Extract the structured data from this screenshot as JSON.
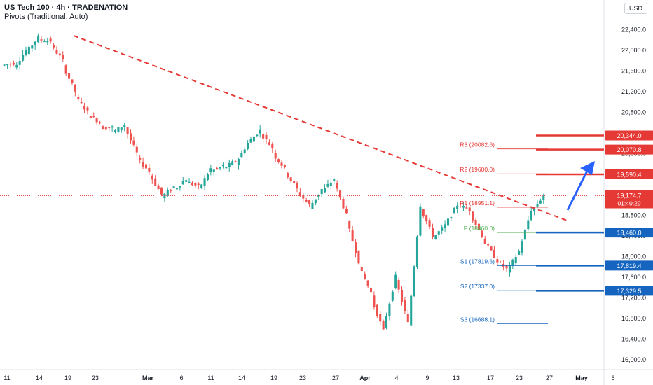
{
  "header": {
    "title": "US Tech 100 · 4h · TRADENATION",
    "subtitle": "Pivots (Traditional, Auto)",
    "currency": "USD"
  },
  "colors": {
    "up": "#26a69a",
    "down": "#ef5350",
    "trendline": "#e53935",
    "resistance": "#e53935",
    "support": "#1565c0",
    "pivot": "#4caf50",
    "arrow": "#2962ff",
    "price_label": "#e53935"
  },
  "chart_data": {
    "type": "candlestick",
    "ylim": [
      15800,
      22700
    ],
    "y_ticks": [
      16000,
      16400,
      16800,
      17200,
      17600,
      18000,
      18400,
      18800,
      19200,
      19600,
      20000,
      20400,
      20800,
      21200,
      21600,
      22000,
      22400
    ],
    "y_tick_labels": [
      "16,000.0",
      "16,400.0",
      "16,800.0",
      "17,200.0",
      "17,600.0",
      "18,000.0",
      "18,400.0",
      "18,800.0",
      "19,200.0",
      "19,600.0",
      "20,000.0",
      "20,400.0",
      "20,800.0",
      "21,200.0",
      "21,600.0",
      "22,000.0",
      "22,400.0"
    ],
    "x_ticks": [
      "11",
      "14",
      "19",
      "23",
      "Mar",
      "6",
      "11",
      "14",
      "19",
      "23",
      "27",
      "Apr",
      "4",
      "9",
      "13",
      "17",
      "23",
      "27",
      "May",
      "6"
    ],
    "x_bold_ticks": [
      "Mar",
      "Apr",
      "May"
    ],
    "price_path": [
      [
        21700,
        21750
      ],
      [
        21650,
        22000
      ],
      [
        21950,
        22250
      ],
      [
        22200,
        22180
      ],
      [
        22100,
        21800
      ],
      [
        21700,
        21200
      ],
      [
        21100,
        20800
      ],
      [
        20750,
        20600
      ],
      [
        20500,
        20500
      ],
      [
        20400,
        20550
      ],
      [
        20500,
        20000
      ],
      [
        19900,
        19650
      ],
      [
        19600,
        19200
      ],
      [
        19150,
        19350
      ],
      [
        19300,
        19500
      ],
      [
        19450,
        19350
      ],
      [
        19300,
        19700
      ],
      [
        19650,
        19750
      ],
      [
        19700,
        19850
      ],
      [
        19800,
        20200
      ],
      [
        20200,
        20450
      ],
      [
        20400,
        20100
      ],
      [
        20000,
        19700
      ],
      [
        19650,
        19300
      ],
      [
        19250,
        19000
      ],
      [
        18950,
        19300
      ],
      [
        19250,
        19500
      ],
      [
        19450,
        18800
      ],
      [
        18700,
        17900
      ],
      [
        17800,
        17300
      ],
      [
        17200,
        16550
      ],
      [
        16600,
        17600
      ],
      [
        17550,
        16700
      ],
      [
        16650,
        19000
      ],
      [
        18950,
        18400
      ],
      [
        18350,
        18600
      ],
      [
        18600,
        19000
      ],
      [
        19000,
        18900
      ],
      [
        18850,
        18400
      ],
      [
        18350,
        18000
      ],
      [
        17950,
        17750
      ],
      [
        17700,
        18100
      ],
      [
        18100,
        18900
      ],
      [
        18850,
        19180
      ]
    ],
    "trendline": {
      "start_index": 2,
      "start_value": 22280,
      "end_index": 44,
      "end_value": 18680
    },
    "pivots": [
      {
        "name": "R3",
        "label": "R3 (20082.6)",
        "value": 20082.6,
        "kind": "resistance"
      },
      {
        "name": "R2",
        "label": "R2 (19600.0)",
        "value": 19600.0,
        "kind": "resistance"
      },
      {
        "name": "R1",
        "label": "R1 (18951.1)",
        "value": 18951.1,
        "kind": "resistance"
      },
      {
        "name": "P",
        "label": "P (18460.0)",
        "value": 18460.0,
        "kind": "pivot"
      },
      {
        "name": "S1",
        "label": "S1 (17819.6)",
        "value": 17819.6,
        "kind": "support"
      },
      {
        "name": "S2",
        "label": "S2 (17337.0)",
        "value": 17337.0,
        "kind": "support"
      },
      {
        "name": "S3",
        "label": "S3 (16688.1)",
        "value": 16688.1,
        "kind": "support"
      }
    ],
    "levels": [
      {
        "value": 20344.0,
        "label": "20,344.0",
        "kind": "resistance"
      },
      {
        "value": 20070.8,
        "label": "20,070.8",
        "kind": "resistance"
      },
      {
        "value": 19590.4,
        "label": "19,590.4",
        "kind": "resistance"
      },
      {
        "value": 18460.0,
        "label": "18,460.0",
        "kind": "support"
      },
      {
        "value": 17819.4,
        "label": "17,819.4",
        "kind": "support"
      },
      {
        "value": 17329.5,
        "label": "17,329.5",
        "kind": "support"
      }
    ],
    "current_price": {
      "value": 19174.7,
      "label": "19,174.7",
      "countdown": "01:40:29"
    }
  }
}
